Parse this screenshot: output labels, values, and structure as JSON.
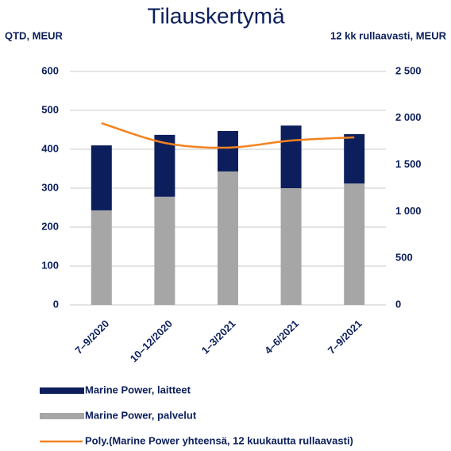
{
  "chart_data": {
    "type": "bar",
    "title": "Tilauskertymä",
    "y_label": "QTD, MEUR",
    "y2_label": "12 kk rullaavasti, MEUR",
    "categories": [
      "7–9/2020",
      "10–12/2020",
      "1–3/2021",
      "4–6/2021",
      "7–9/2021"
    ],
    "stacked": true,
    "series": [
      {
        "name": "Marine Power, laitteet",
        "color": "#0c1f5c",
        "type": "bar",
        "values": [
          167,
          159,
          104,
          161,
          127
        ]
      },
      {
        "name": "Marine Power, palvelut",
        "color": "#a6a6a6",
        "type": "bar",
        "values": [
          243,
          278,
          343,
          300,
          312
        ]
      },
      {
        "name": "Poly.(Marine Power yhteensä, 12 kuukautta rullaavasti)",
        "color": "#f58220",
        "type": "line",
        "axis": "y2",
        "values": [
          1947,
          1735,
          1684,
          1760,
          1794
        ]
      }
    ],
    "ylim": [
      0,
      600
    ],
    "yticks": [
      0,
      100,
      200,
      300,
      400,
      500,
      600
    ],
    "y2lim": [
      0,
      2500
    ],
    "y2ticks": [
      0,
      {
        "value": 500,
        "label": "500"
      },
      {
        "value": 1000,
        "label": "1 000"
      },
      {
        "value": 1500,
        "label": "1 500"
      },
      {
        "value": 2000,
        "label": "2 000"
      },
      {
        "value": 2500,
        "label": "2 500"
      }
    ],
    "grid": true
  }
}
